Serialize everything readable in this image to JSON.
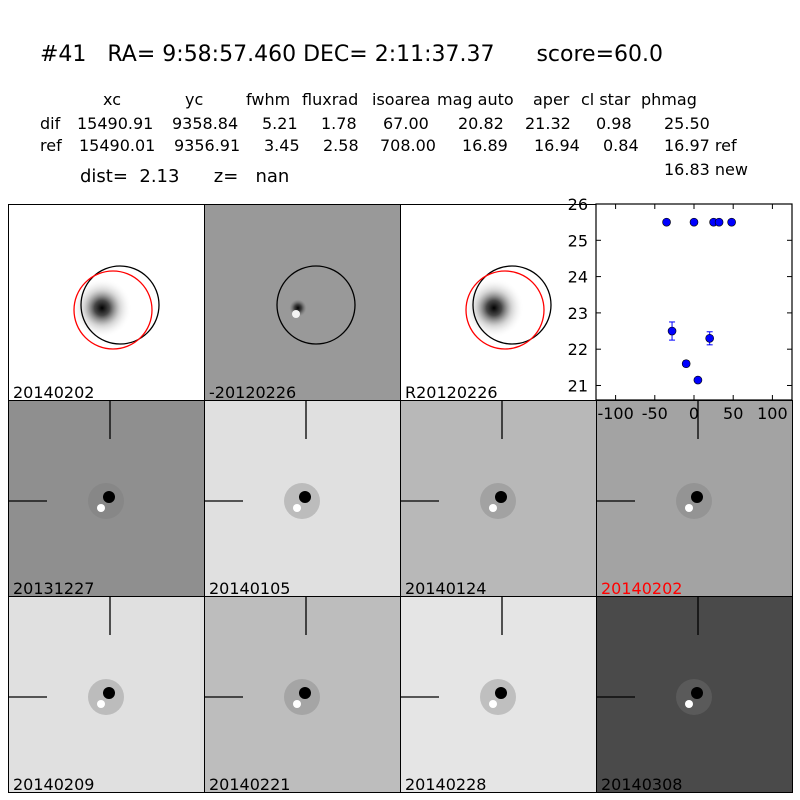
{
  "header": {
    "title": "#41   RA= 9:58:57.460 DEC= 2:11:37.37      score=60.0",
    "columns": [
      "xc",
      "yc",
      "fwhm",
      "fluxrad",
      "isoarea",
      "mag auto",
      "aper",
      "cl star",
      "phmag"
    ],
    "rows": [
      {
        "name": "dif",
        "values": [
          "15490.91",
          "9358.84",
          "5.21",
          "1.78",
          "67.00",
          "20.82",
          "21.32",
          "0.98",
          "25.50"
        ]
      },
      {
        "name": "ref",
        "values": [
          "15490.01",
          "9356.91",
          "3.45",
          "2.58",
          "708.00",
          "16.89",
          "16.94",
          "0.84",
          "16.97 ref"
        ]
      }
    ],
    "extra": "16.83 new",
    "dist": "dist=  2.13      z=   nan"
  },
  "stamps": [
    {
      "label": "20140202",
      "bg": "#ffffff",
      "circles": true,
      "red": true
    },
    {
      "label": "-20120226",
      "bg": "#999999",
      "circles": true,
      "red": false
    },
    {
      "label": "R20120226",
      "bg": "#ffffff",
      "circles": true,
      "red": true
    },
    {
      "label": "20131227",
      "bg": "#8f8f8f",
      "circles": false,
      "red": false
    },
    {
      "label": "20140105",
      "bg": "#e0e0e0",
      "circles": false,
      "red": false
    },
    {
      "label": "20140124",
      "bg": "#b8b8b8",
      "circles": false,
      "red": false
    },
    {
      "label": "20140202",
      "bg": "#a3a3a3",
      "circles": false,
      "red": false,
      "label_color": "red"
    },
    {
      "label": "20140209",
      "bg": "#e0e0e0",
      "circles": false,
      "red": false
    },
    {
      "label": "20140221",
      "bg": "#bdbdbd",
      "circles": false,
      "red": false
    },
    {
      "label": "20140228",
      "bg": "#e5e5e5",
      "circles": false,
      "red": false
    },
    {
      "label": "20140308",
      "bg": "#4a4a4a",
      "circles": false,
      "red": false
    }
  ],
  "chart_data": {
    "type": "scatter",
    "x": [
      -35,
      -28,
      -10,
      5,
      20,
      0,
      25,
      32,
      48
    ],
    "y": [
      25.5,
      22.5,
      21.6,
      21.15,
      22.3,
      25.5,
      25.5,
      25.5,
      25.5
    ],
    "yerr": [
      0.05,
      0.25,
      0.08,
      0.05,
      0.18,
      0.05,
      0.05,
      0.05,
      0.05
    ],
    "xlim": [
      -125,
      125
    ],
    "ylim": [
      26,
      20.6
    ],
    "xticks": [
      -100,
      -50,
      0,
      50,
      100
    ],
    "yticks": [
      21,
      22,
      23,
      24,
      25,
      26
    ],
    "marker_color": "#0000ff"
  }
}
